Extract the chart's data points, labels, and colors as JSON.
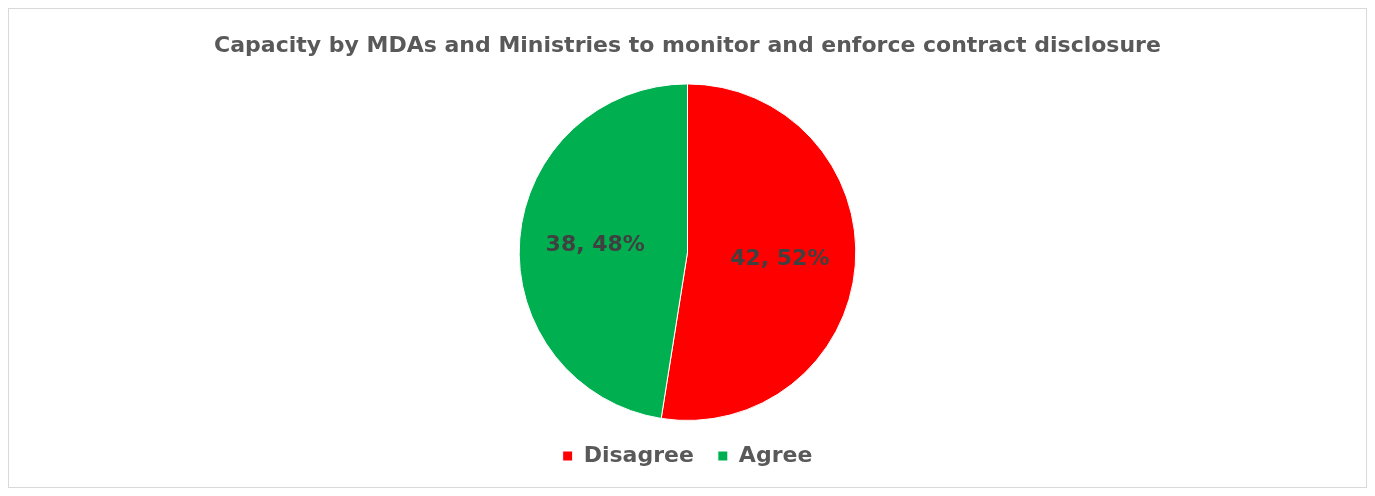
{
  "chart_data": {
    "type": "pie",
    "title": "Capacity by MDAs and Ministries to monitor and enforce contract disclosure",
    "categories": [
      "Disagree",
      "Agree"
    ],
    "values": [
      42,
      38
    ],
    "colors": [
      "#ff0000",
      "#00b050"
    ],
    "value_labels": [
      "42, 52%",
      "38, 48%"
    ],
    "legend": "bottom"
  }
}
